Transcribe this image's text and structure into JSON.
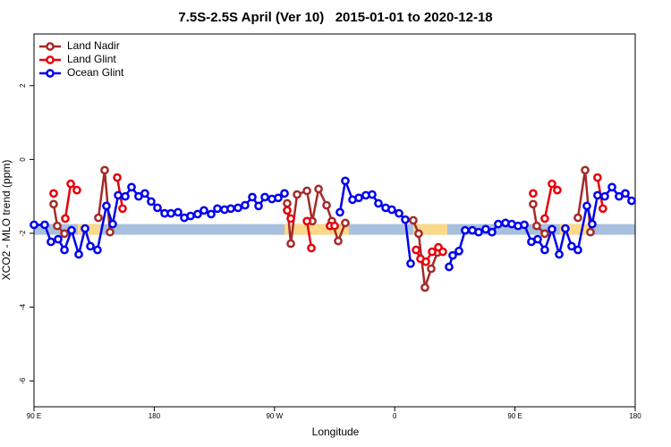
{
  "chart_data": {
    "type": "line",
    "title": "7.5S-2.5S April (Ver 10)   2015-01-01 to 2020-12-18",
    "xlabel": "Longitude",
    "ylabel": "XCO2 - MLO trend (ppm)",
    "xlim": [
      90,
      540
    ],
    "xticks": [
      {
        "value": 90,
        "label": "90 E"
      },
      180,
      {
        "value": 270,
        "label": "90 W"
      },
      {
        "value": 360,
        "label": "0"
      },
      {
        "value": 450,
        "label": "90 E"
      },
      {
        "value": 540,
        "label": "180"
      }
    ],
    "ylim": [
      -6.7,
      3.4
    ],
    "yticks": [
      2,
      0,
      -2,
      -4,
      -6
    ],
    "legend": "topleft",
    "band": {
      "ylim": [
        -2.04,
        -1.75
      ],
      "color": "#a8c0de"
    },
    "highlights": {
      "color": "#fbd98a",
      "xlims": [
        [
          122.8,
          139.6
        ],
        [
          277.5,
          325.7
        ],
        [
          373.9,
          399.4
        ],
        [
          483.7,
          506.5
        ]
      ]
    },
    "series": [
      {
        "name": "Land Nadir",
        "color": "#a52a2a",
        "x": [
          104.7,
          107.4,
          112.8,
          125,
          138.2,
          142.9,
          146.9,
          200,
          279.5,
          282.2,
          286.9,
          294.3,
          298.3,
          303.0,
          309.0,
          313.0,
          317.7,
          323.0,
          350,
          373.9,
          377.9,
          382.6,
          387.3,
          392.0,
          430,
          463.6,
          466.3,
          472.3,
          485,
          497.1,
          502.5,
          506.5
        ],
        "values": [
          -1.21,
          -1.8,
          -2.01,
          null,
          -1.58,
          -0.29,
          -1.97,
          null,
          -1.19,
          -2.28,
          -0.95,
          -0.85,
          -1.67,
          -0.8,
          -1.24,
          -1.67,
          -2.21,
          -1.72,
          null,
          -1.65,
          -2.01,
          -3.47,
          -2.96,
          -2.52,
          null,
          -1.21,
          -1.8,
          -2.01,
          null,
          -1.58,
          -0.29,
          -1.97
        ]
      },
      {
        "name": "Land Glint",
        "color": "#e8000b",
        "x": [
          104.7,
          109,
          113.4,
          117.5,
          122.1,
          140,
          152.3,
          156.3,
          250,
          279.5,
          282.2,
          290,
          294.3,
          297.6,
          305,
          311.6,
          315.0,
          350,
          376.0,
          379.3,
          383.3,
          388.0,
          392.7,
          396.0,
          430,
          463.6,
          468,
          472.3,
          477.7,
          481.7,
          495,
          511.8,
          515.8
        ],
        "values": [
          -0.92,
          null,
          -1.6,
          -0.66,
          -0.83,
          null,
          -0.49,
          -1.33,
          null,
          -1.38,
          -1.6,
          null,
          -1.67,
          -2.4,
          null,
          -1.8,
          -1.8,
          null,
          -2.45,
          -2.69,
          -2.77,
          -2.5,
          -2.38,
          -2.5,
          null,
          -0.92,
          null,
          -1.6,
          -0.66,
          -0.83,
          null,
          -0.49,
          -1.33
        ]
      },
      {
        "name": "Ocean Glint",
        "color": "#0000ee",
        "x": [
          90,
          98.0,
          102.7,
          108.1,
          112.8,
          118.1,
          123.5,
          128.2,
          132.2,
          137.5,
          144.2,
          148.9,
          153.0,
          158.3,
          163.0,
          168.3,
          173.0,
          177.7,
          182.4,
          187.8,
          192.5,
          197.8,
          202.5,
          207.2,
          212.5,
          217.2,
          222.6,
          227.3,
          232.6,
          237.3,
          242.7,
          248.0,
          253.4,
          258.1,
          262.8,
          268.1,
          272.8,
          277.5,
          298,
          319.0,
          323.0,
          328.4,
          333.1,
          338.4,
          343.1,
          347.8,
          353.2,
          357.8,
          363.2,
          367.9,
          371.9,
          385,
          400.7,
          403.4,
          408.1,
          412.7,
          418.1,
          422.8,
          428.1,
          432.8,
          437.5,
          442.9,
          447.6,
          452.3,
          457.0,
          462.3,
          467.0,
          472.3,
          477.7,
          483.1,
          487.7,
          492.4,
          497.1,
          503.8,
          507.8,
          511.8,
          517.2,
          522.6,
          527.9,
          532.6,
          537.3
        ],
        "values": [
          -1.77,
          -1.77,
          -2.23,
          -2.16,
          -2.45,
          -1.92,
          -2.57,
          -1.87,
          -2.35,
          -2.45,
          -1.26,
          -1.75,
          -0.97,
          -1.0,
          -0.75,
          -1.0,
          -0.92,
          -1.14,
          -1.31,
          -1.46,
          -1.46,
          -1.43,
          -1.58,
          -1.53,
          -1.48,
          -1.38,
          -1.48,
          -1.33,
          -1.36,
          -1.33,
          -1.31,
          -1.24,
          -1.02,
          -1.26,
          -1.02,
          -1.07,
          -1.04,
          -0.92,
          null,
          -1.43,
          -0.58,
          -1.09,
          -1.04,
          -0.97,
          -0.95,
          -1.19,
          -1.31,
          -1.36,
          -1.46,
          -1.63,
          -2.82,
          null,
          -2.91,
          -2.6,
          -2.48,
          -1.92,
          -1.92,
          -1.97,
          -1.89,
          -1.97,
          -1.75,
          -1.72,
          -1.75,
          -1.8,
          -1.77,
          -2.23,
          -2.16,
          -2.45,
          -1.89,
          -2.57,
          -1.87,
          -2.35,
          -2.45,
          -1.26,
          -1.75,
          -0.97,
          -1.0,
          -0.75,
          -1.0,
          -0.92,
          -1.12
        ]
      }
    ]
  }
}
